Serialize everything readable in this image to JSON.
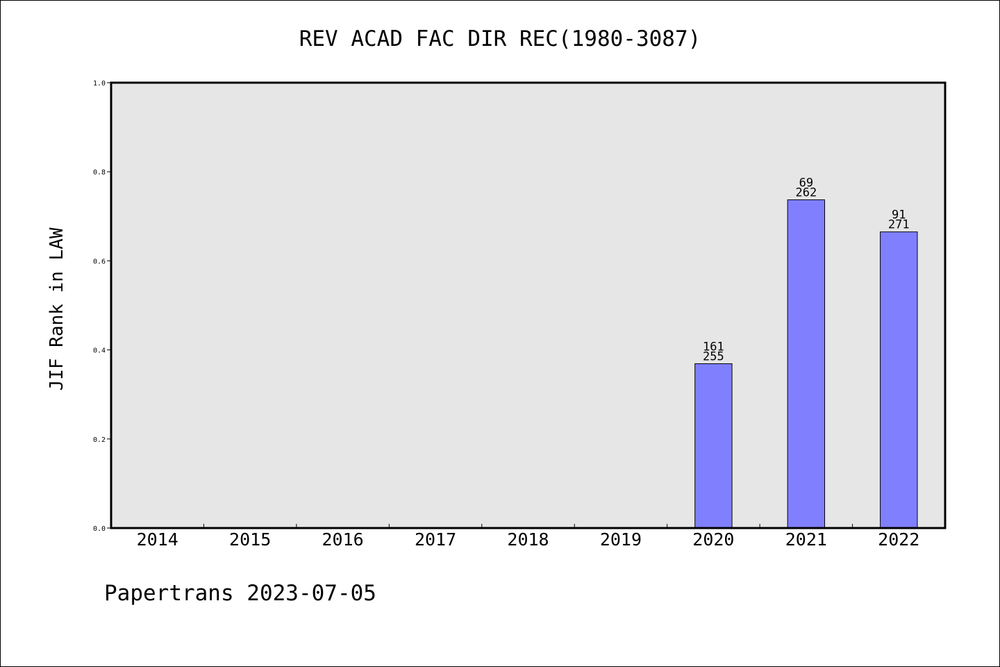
{
  "chart_data": {
    "type": "bar",
    "title": "REV ACAD FAC DIR REC(1980-3087)",
    "xlabel": "",
    "ylabel": "JIF Rank in LAW",
    "ylim": [
      0,
      1.0
    ],
    "yticks": [
      "0.0",
      "0.2",
      "0.4",
      "0.6",
      "0.8",
      "1.0"
    ],
    "categories": [
      "2014",
      "2015",
      "2016",
      "2017",
      "2018",
      "2019",
      "2020",
      "2021",
      "2022"
    ],
    "values": [
      null,
      null,
      null,
      null,
      null,
      null,
      0.369,
      0.737,
      0.665
    ],
    "rank_labels": [
      null,
      null,
      null,
      null,
      null,
      null,
      {
        "rank": "161",
        "total": "255"
      },
      {
        "rank": "69",
        "total": "262"
      },
      {
        "rank": "91",
        "total": "271"
      }
    ],
    "grid": false,
    "colors": {
      "bar": "#8080ff",
      "plot_background": "#e6e6e6"
    }
  },
  "footer": {
    "text": "Papertrans 2023-07-05"
  }
}
